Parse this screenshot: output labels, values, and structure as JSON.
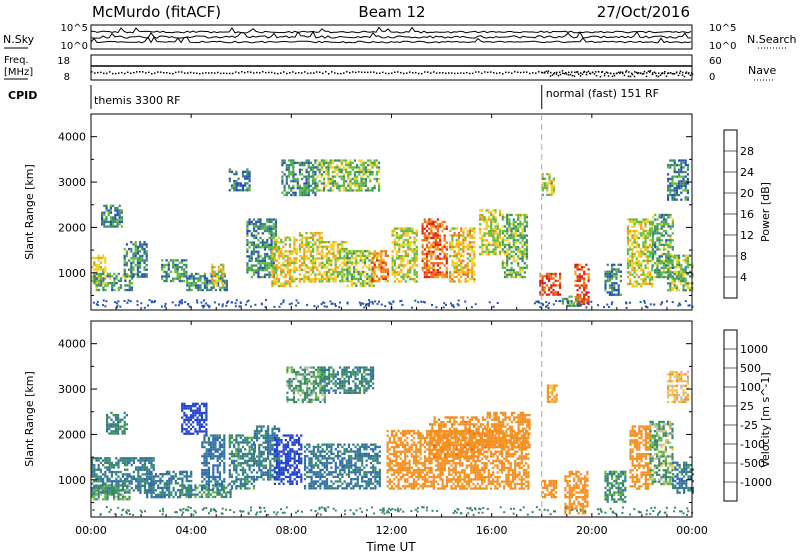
{
  "header": {
    "station": "McMurdo (fitACF)",
    "beam": "Beam 12",
    "date": "27/Oct/2016"
  },
  "noise_panel": {
    "left_label": "N.Sky",
    "right_label": "N.Search",
    "left_ticks": [
      "10^5",
      "10^0"
    ],
    "right_ticks": [
      "10^5",
      "10^0"
    ]
  },
  "freq_panel": {
    "left_label_line1": "Freq.",
    "left_label_line2": "[MHz]",
    "left_ticks": [
      "18",
      "8"
    ],
    "right_label": "Nave",
    "right_ticks": [
      "60",
      "0"
    ]
  },
  "cpid": {
    "label": "CPID",
    "segments": [
      {
        "start_hour": 0,
        "text": "themis 3300 RF"
      },
      {
        "start_hour": 18,
        "text": "normal (fast) 151 RF"
      }
    ]
  },
  "x_axis": {
    "label": "Time UT",
    "ticks": [
      "00:00",
      "04:00",
      "08:00",
      "12:00",
      "16:00",
      "20:00",
      "00:00"
    ],
    "hours": [
      0,
      4,
      8,
      12,
      16,
      20,
      24
    ]
  },
  "y_axis": {
    "label": "Slant Range [km]",
    "ticks": [
      "1000",
      "2000",
      "3000",
      "4000"
    ],
    "values": [
      1000,
      2000,
      3000,
      4000
    ],
    "range_km": [
      180,
      4500
    ]
  },
  "power_colorbar": {
    "label": "Power [dB]",
    "tick_labels": [
      "4",
      "8",
      "12",
      "16",
      "20",
      "24",
      "28"
    ],
    "colors": [
      "#1e1ef0",
      "#2851b4",
      "#3a8a6c",
      "#5fbb3a",
      "#f0d020",
      "#f5a018",
      "#f06a14",
      "#e01e10"
    ]
  },
  "velocity_colorbar": {
    "label": "Velocity [m s^-1]",
    "tick_labels": [
      "1000",
      "500",
      "100",
      "25",
      "-25",
      "-100",
      "-500",
      "-1000"
    ],
    "colors": [
      "#2244cc",
      "#2f6fa8",
      "#3a8a68",
      "#5fbb3a",
      "#bbbbbb",
      "#f5c048",
      "#f59020",
      "#f06a14",
      "#e01e10"
    ]
  },
  "chart_data": [
    {
      "type": "heatmap",
      "title": "Power",
      "xlabel": "Time UT",
      "ylabel": "Slant Range [km]",
      "xlim": [
        0,
        24
      ],
      "ylim": [
        180,
        4500
      ],
      "units": "dB",
      "colorbar_range": [
        0,
        30
      ],
      "cpid_change_hour": 18,
      "blobs": [
        {
          "t0": 0.0,
          "t1": 0.6,
          "r0": 700,
          "r1": 1400,
          "v": 18
        },
        {
          "t0": 0.1,
          "t1": 1.6,
          "r0": 600,
          "r1": 1000,
          "v": 12
        },
        {
          "t0": 0.4,
          "t1": 1.2,
          "r0": 2000,
          "r1": 2500,
          "v": 9
        },
        {
          "t0": 1.3,
          "t1": 2.2,
          "r0": 900,
          "r1": 1700,
          "v": 10
        },
        {
          "t0": 2.8,
          "t1": 3.8,
          "r0": 800,
          "r1": 1300,
          "v": 11
        },
        {
          "t0": 3.8,
          "t1": 5.4,
          "r0": 600,
          "r1": 1000,
          "v": 10
        },
        {
          "t0": 4.8,
          "t1": 5.3,
          "r0": 700,
          "r1": 1200,
          "v": 19
        },
        {
          "t0": 5.5,
          "t1": 6.3,
          "r0": 2800,
          "r1": 3300,
          "v": 8
        },
        {
          "t0": 6.2,
          "t1": 7.4,
          "r0": 900,
          "r1": 2200,
          "v": 10
        },
        {
          "t0": 7.2,
          "t1": 8.2,
          "r0": 700,
          "r1": 1800,
          "v": 18
        },
        {
          "t0": 7.6,
          "t1": 9.0,
          "r0": 2700,
          "r1": 3500,
          "v": 10
        },
        {
          "t0": 8.3,
          "t1": 9.2,
          "r0": 800,
          "r1": 1900,
          "v": 19
        },
        {
          "t0": 9.0,
          "t1": 11.5,
          "r0": 2800,
          "r1": 3500,
          "v": 14
        },
        {
          "t0": 9.2,
          "t1": 10.2,
          "r0": 800,
          "r1": 1700,
          "v": 17
        },
        {
          "t0": 10.2,
          "t1": 11.3,
          "r0": 700,
          "r1": 1500,
          "v": 15
        },
        {
          "t0": 11.2,
          "t1": 11.9,
          "r0": 800,
          "r1": 1500,
          "v": 24
        },
        {
          "t0": 12.0,
          "t1": 13.0,
          "r0": 800,
          "r1": 2000,
          "v": 17
        },
        {
          "t0": 13.2,
          "t1": 14.2,
          "r0": 900,
          "r1": 2200,
          "v": 26
        },
        {
          "t0": 14.3,
          "t1": 15.3,
          "r0": 800,
          "r1": 2000,
          "v": 20
        },
        {
          "t0": 15.5,
          "t1": 16.3,
          "r0": 1400,
          "r1": 2400,
          "v": 17
        },
        {
          "t0": 16.4,
          "t1": 17.4,
          "r0": 900,
          "r1": 2300,
          "v": 14
        },
        {
          "t0": 17.9,
          "t1": 18.7,
          "r0": 500,
          "r1": 1000,
          "v": 28
        },
        {
          "t0": 18.0,
          "t1": 18.5,
          "r0": 2700,
          "r1": 3200,
          "v": 16
        },
        {
          "t0": 18.8,
          "t1": 19.6,
          "r0": 250,
          "r1": 500,
          "v": 13
        },
        {
          "t0": 19.3,
          "t1": 19.9,
          "r0": 300,
          "r1": 1200,
          "v": 27
        },
        {
          "t0": 20.5,
          "t1": 21.2,
          "r0": 500,
          "r1": 1200,
          "v": 10
        },
        {
          "t0": 21.4,
          "t1": 22.4,
          "r0": 700,
          "r1": 2200,
          "v": 17
        },
        {
          "t0": 22.4,
          "t1": 23.2,
          "r0": 900,
          "r1": 2300,
          "v": 12
        },
        {
          "t0": 23.0,
          "t1": 24.0,
          "r0": 600,
          "r1": 1400,
          "v": 14
        },
        {
          "t0": 23.0,
          "t1": 23.8,
          "r0": 2600,
          "r1": 3500,
          "v": 9
        }
      ]
    },
    {
      "type": "heatmap",
      "title": "Velocity",
      "xlabel": "Time UT",
      "ylabel": "Slant Range [km]",
      "xlim": [
        0,
        24
      ],
      "ylim": [
        180,
        4500
      ],
      "units": "m s^-1",
      "blobs": [
        {
          "t0": 0.0,
          "t1": 2.5,
          "r0": 700,
          "r1": 1500,
          "v": 100
        },
        {
          "t0": 0.0,
          "t1": 1.5,
          "r0": 550,
          "r1": 900,
          "v": 40
        },
        {
          "t0": 0.6,
          "t1": 1.4,
          "r0": 2000,
          "r1": 2500,
          "v": 80
        },
        {
          "t0": 2.2,
          "t1": 4.0,
          "r0": 600,
          "r1": 1200,
          "v": 120
        },
        {
          "t0": 3.6,
          "t1": 5.6,
          "r0": 600,
          "r1": 900,
          "v": 60
        },
        {
          "t0": 3.6,
          "t1": 4.6,
          "r0": 2000,
          "r1": 2700,
          "v": 700
        },
        {
          "t0": 4.4,
          "t1": 5.3,
          "r0": 800,
          "r1": 2000,
          "v": 150
        },
        {
          "t0": 5.5,
          "t1": 6.5,
          "r0": 800,
          "r1": 2000,
          "v": 80
        },
        {
          "t0": 6.5,
          "t1": 7.5,
          "r0": 1000,
          "r1": 2200,
          "v": 110
        },
        {
          "t0": 7.3,
          "t1": 8.4,
          "r0": 900,
          "r1": 2000,
          "v": 900
        },
        {
          "t0": 7.8,
          "t1": 9.3,
          "r0": 2700,
          "r1": 3500,
          "v": 40
        },
        {
          "t0": 8.5,
          "t1": 11.5,
          "r0": 800,
          "r1": 1800,
          "v": 120
        },
        {
          "t0": 9.2,
          "t1": 11.3,
          "r0": 2900,
          "r1": 3500,
          "v": 80
        },
        {
          "t0": 11.8,
          "t1": 17.5,
          "r0": 800,
          "r1": 2100,
          "v": -350
        },
        {
          "t0": 13.5,
          "t1": 15.8,
          "r0": 1500,
          "r1": 2400,
          "v": -450
        },
        {
          "t0": 15.8,
          "t1": 17.5,
          "r0": 1700,
          "r1": 2500,
          "v": -400
        },
        {
          "t0": 18.0,
          "t1": 18.6,
          "r0": 600,
          "r1": 1000,
          "v": -400
        },
        {
          "t0": 18.9,
          "t1": 19.8,
          "r0": 250,
          "r1": 1200,
          "v": -380
        },
        {
          "t0": 18.2,
          "t1": 18.6,
          "r0": 2700,
          "r1": 3100,
          "v": -120
        },
        {
          "t0": 20.5,
          "t1": 21.3,
          "r0": 500,
          "r1": 1200,
          "v": 60
        },
        {
          "t0": 21.5,
          "t1": 22.3,
          "r0": 800,
          "r1": 2200,
          "v": -300
        },
        {
          "t0": 22.3,
          "t1": 23.2,
          "r0": 900,
          "r1": 2300,
          "v": 20
        },
        {
          "t0": 23.2,
          "t1": 24.0,
          "r0": 700,
          "r1": 1400,
          "v": 120
        },
        {
          "t0": 23.0,
          "t1": 23.8,
          "r0": 2700,
          "r1": 3400,
          "v": -60
        }
      ]
    }
  ]
}
